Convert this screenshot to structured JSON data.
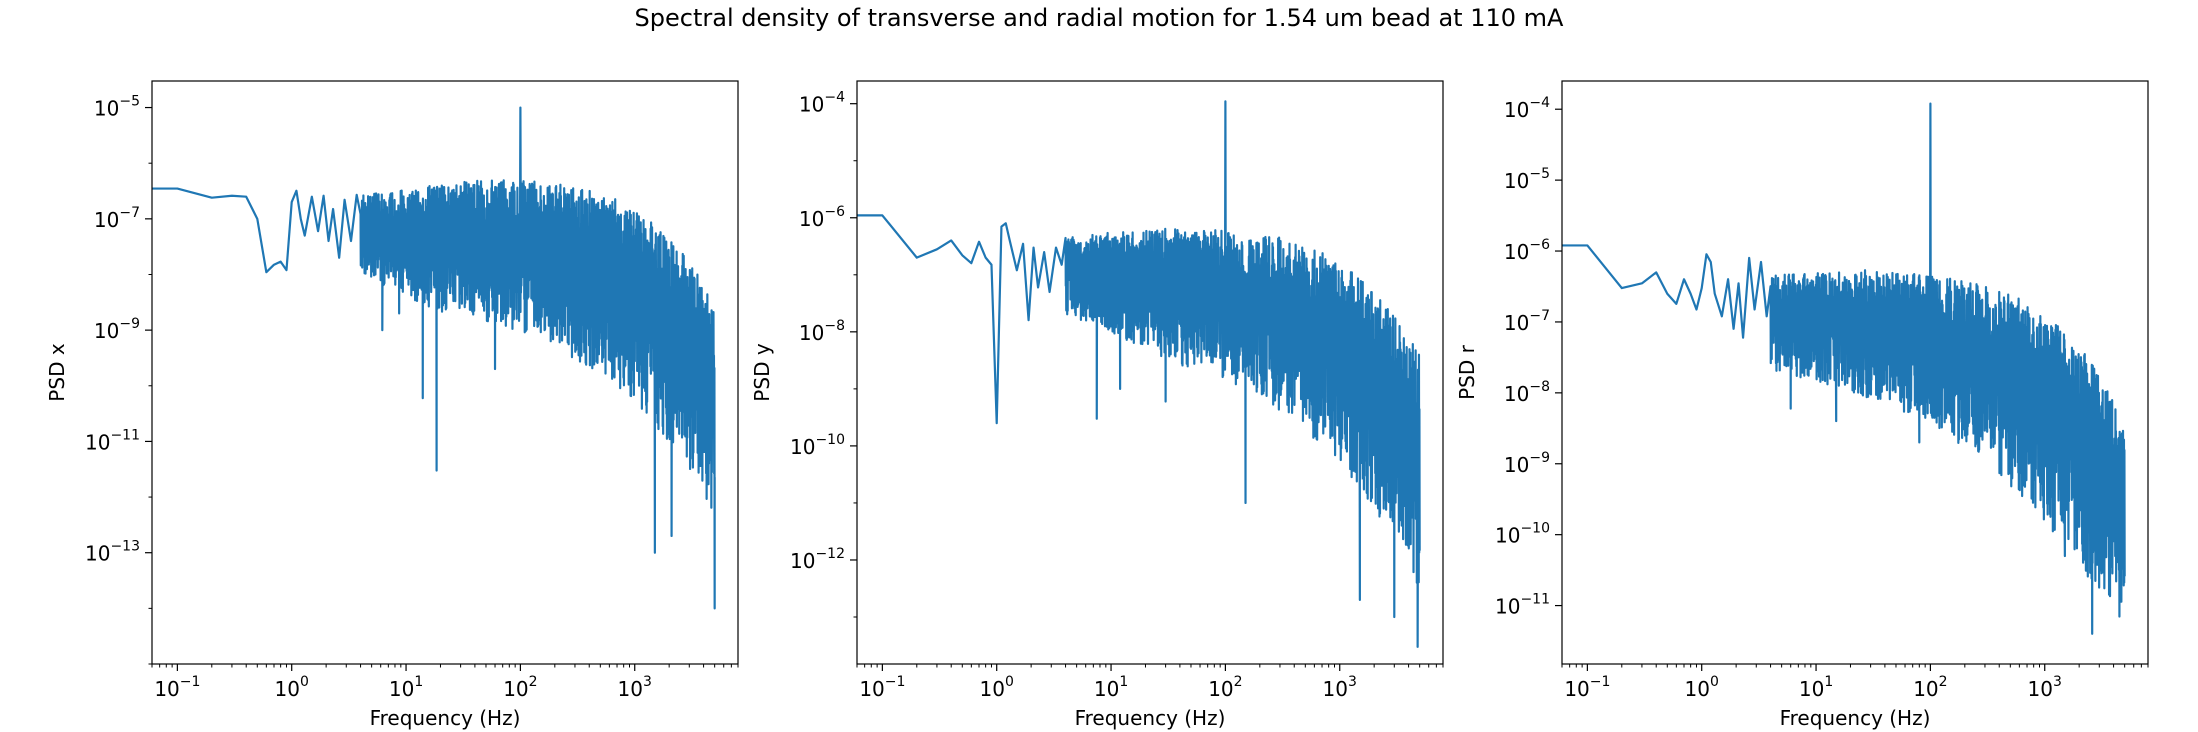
{
  "figure": {
    "title": "Spectral density of transverse and radial motion for 1.54 um bead at 110 mA"
  },
  "chart_data": [
    {
      "type": "line",
      "ylabel": "PSD x",
      "xlabel": "Frequency (Hz)",
      "xscale": "log",
      "yscale": "log",
      "xlim": [
        0.06,
        8000
      ],
      "ylim": [
        1e-15,
        3e-05
      ],
      "grid": false,
      "color": "#1f77b4",
      "xticks": [
        {
          "base": "10",
          "exp": "−1",
          "value": 0.1
        },
        {
          "base": "10",
          "exp": "0",
          "value": 1
        },
        {
          "base": "10",
          "exp": "1",
          "value": 10
        },
        {
          "base": "10",
          "exp": "2",
          "value": 100
        },
        {
          "base": "10",
          "exp": "3",
          "value": 1000
        }
      ],
      "yticks": [
        {
          "base": "10",
          "exp": "−5",
          "value": 1e-05
        },
        {
          "base": "10",
          "exp": "−7",
          "value": 1e-07
        },
        {
          "base": "10",
          "exp": "−9",
          "value": 1e-09
        },
        {
          "base": "10",
          "exp": "−11",
          "value": 1e-11
        },
        {
          "base": "10",
          "exp": "−13",
          "value": 1e-13
        }
      ],
      "low_freq": {
        "x": [
          0.0005,
          0.1,
          0.2,
          0.3,
          0.4,
          0.5,
          0.6,
          0.7,
          0.8,
          0.9,
          1.0,
          1.1,
          1.2,
          1.3,
          1.5,
          1.7,
          1.9,
          2.1,
          2.3,
          2.6,
          2.9,
          3.3,
          3.7
        ],
        "y": [
          3.5e-07,
          3.5e-07,
          2.4e-07,
          2.6e-07,
          2.5e-07,
          1e-07,
          1.1e-08,
          1.5e-08,
          1.7e-08,
          1.2e-08,
          2e-07,
          3.2e-07,
          1e-07,
          5e-08,
          2.5e-07,
          6e-08,
          2.6e-07,
          4e-08,
          1.5e-07,
          2e-08,
          2.2e-07,
          4e-08,
          2.7e-07
        ]
      },
      "broadband": {
        "x_start": 4,
        "x_end": 5000,
        "peak_upper": [
          [
            4,
            2.8e-07
          ],
          [
            10,
            3.3e-07
          ],
          [
            30,
            4.8e-07
          ],
          [
            100,
            5e-07
          ],
          [
            300,
            4e-07
          ],
          [
            700,
            2.2e-07
          ],
          [
            1500,
            8e-08
          ],
          [
            3000,
            1.8e-08
          ],
          [
            5000,
            3e-09
          ]
        ],
        "valley_lower": [
          [
            4,
            1e-08
          ],
          [
            10,
            4e-09
          ],
          [
            30,
            1.5e-09
          ],
          [
            100,
            1e-09
          ],
          [
            300,
            3e-10
          ],
          [
            700,
            1e-10
          ],
          [
            1500,
            2e-11
          ],
          [
            3000,
            3e-12
          ],
          [
            5000,
            5e-13
          ]
        ],
        "dips": [
          [
            6.2,
            1e-09
          ],
          [
            8.7,
            2e-09
          ],
          [
            14,
            6e-11
          ],
          [
            18.5,
            3e-12
          ],
          [
            60,
            2e-10
          ],
          [
            1500,
            1e-13
          ],
          [
            2100,
            2e-13
          ],
          [
            5000,
            1e-14
          ]
        ]
      },
      "spike": {
        "x": 100,
        "y": 1e-05
      }
    },
    {
      "type": "line",
      "ylabel": "PSD y",
      "xlabel": "Frequency (Hz)",
      "xscale": "log",
      "yscale": "log",
      "xlim": [
        0.06,
        8000
      ],
      "ylim": [
        1.5e-14,
        0.00025
      ],
      "grid": false,
      "color": "#1f77b4",
      "xticks": [
        {
          "base": "10",
          "exp": "−1",
          "value": 0.1
        },
        {
          "base": "10",
          "exp": "0",
          "value": 1
        },
        {
          "base": "10",
          "exp": "1",
          "value": 10
        },
        {
          "base": "10",
          "exp": "2",
          "value": 100
        },
        {
          "base": "10",
          "exp": "3",
          "value": 1000
        }
      ],
      "yticks": [
        {
          "base": "10",
          "exp": "−4",
          "value": 0.0001
        },
        {
          "base": "10",
          "exp": "−6",
          "value": 1e-06
        },
        {
          "base": "10",
          "exp": "−8",
          "value": 1e-08
        },
        {
          "base": "10",
          "exp": "−10",
          "value": 1e-10
        },
        {
          "base": "10",
          "exp": "−12",
          "value": 1e-12
        }
      ],
      "low_freq": {
        "x": [
          0.0005,
          0.1,
          0.2,
          0.3,
          0.4,
          0.5,
          0.6,
          0.7,
          0.8,
          0.9,
          1.0,
          1.1,
          1.2,
          1.3,
          1.5,
          1.7,
          1.9,
          2.1,
          2.3,
          2.6,
          2.9,
          3.3,
          3.7
        ],
        "y": [
          1.1e-06,
          1.1e-06,
          2e-07,
          2.8e-07,
          4e-07,
          2.2e-07,
          1.6e-07,
          3.8e-07,
          2e-07,
          1.5e-07,
          2.5e-10,
          7e-07,
          8e-07,
          4e-07,
          1.2e-07,
          3.5e-07,
          1.6e-08,
          3e-07,
          6e-08,
          2.5e-07,
          5e-08,
          3e-07,
          1.5e-07
        ]
      },
      "broadband": {
        "x_start": 4,
        "x_end": 5000,
        "peak_upper": [
          [
            4,
            4.5e-07
          ],
          [
            10,
            5.5e-07
          ],
          [
            30,
            6.5e-07
          ],
          [
            100,
            6e-07
          ],
          [
            300,
            4.5e-07
          ],
          [
            700,
            2.5e-07
          ],
          [
            1500,
            9e-08
          ],
          [
            3000,
            2e-08
          ],
          [
            5000,
            4e-09
          ]
        ],
        "valley_lower": [
          [
            4,
            2e-08
          ],
          [
            10,
            1e-08
          ],
          [
            30,
            3e-09
          ],
          [
            100,
            1.5e-09
          ],
          [
            300,
            4e-10
          ],
          [
            700,
            1e-10
          ],
          [
            1500,
            2e-11
          ],
          [
            3000,
            2e-12
          ],
          [
            5000,
            3e-13
          ]
        ],
        "dips": [
          [
            7.5,
            3e-10
          ],
          [
            12,
            1e-09
          ],
          [
            30,
            6e-10
          ],
          [
            150,
            1e-11
          ],
          [
            1500,
            2e-13
          ],
          [
            3000,
            1e-13
          ],
          [
            4800,
            3e-14
          ]
        ]
      },
      "spike": {
        "x": 100,
        "y": 0.00011
      }
    },
    {
      "type": "line",
      "ylabel": "PSD r",
      "xlabel": "Frequency (Hz)",
      "xscale": "log",
      "yscale": "log",
      "xlim": [
        0.06,
        8000
      ],
      "ylim": [
        1.5e-12,
        0.00025
      ],
      "grid": false,
      "color": "#1f77b4",
      "xticks": [
        {
          "base": "10",
          "exp": "−1",
          "value": 0.1
        },
        {
          "base": "10",
          "exp": "0",
          "value": 1
        },
        {
          "base": "10",
          "exp": "1",
          "value": 10
        },
        {
          "base": "10",
          "exp": "2",
          "value": 100
        },
        {
          "base": "10",
          "exp": "3",
          "value": 1000
        }
      ],
      "yticks": [
        {
          "base": "10",
          "exp": "−4",
          "value": 0.0001
        },
        {
          "base": "10",
          "exp": "−5",
          "value": 1e-05
        },
        {
          "base": "10",
          "exp": "−6",
          "value": 1e-06
        },
        {
          "base": "10",
          "exp": "−7",
          "value": 1e-07
        },
        {
          "base": "10",
          "exp": "−8",
          "value": 1e-08
        },
        {
          "base": "10",
          "exp": "−9",
          "value": 1e-09
        },
        {
          "base": "10",
          "exp": "−10",
          "value": 1e-10
        },
        {
          "base": "10",
          "exp": "−11",
          "value": 1e-11
        }
      ],
      "low_freq": {
        "x": [
          0.0005,
          0.1,
          0.2,
          0.3,
          0.4,
          0.5,
          0.6,
          0.7,
          0.8,
          0.9,
          1.0,
          1.1,
          1.2,
          1.3,
          1.5,
          1.7,
          1.9,
          2.1,
          2.3,
          2.6,
          2.9,
          3.3,
          3.7
        ],
        "y": [
          1.2e-06,
          1.2e-06,
          3e-07,
          3.5e-07,
          5e-07,
          2.5e-07,
          1.8e-07,
          4e-07,
          2.5e-07,
          1.5e-07,
          3e-07,
          9e-07,
          7e-07,
          2.5e-07,
          1.2e-07,
          4e-07,
          8e-08,
          3.5e-07,
          6e-08,
          8e-07,
          1.5e-07,
          7e-07,
          1.2e-07
        ]
      },
      "broadband": {
        "x_start": 4,
        "x_end": 5000,
        "peak_upper": [
          [
            4,
            4.5e-07
          ],
          [
            10,
            5e-07
          ],
          [
            30,
            5.5e-07
          ],
          [
            100,
            4.5e-07
          ],
          [
            300,
            3.5e-07
          ],
          [
            700,
            2e-07
          ],
          [
            1500,
            8e-08
          ],
          [
            3000,
            2e-08
          ],
          [
            5000,
            4e-09
          ]
        ],
        "valley_lower": [
          [
            4,
            2e-08
          ],
          [
            10,
            1.5e-08
          ],
          [
            30,
            8e-09
          ],
          [
            100,
            4e-09
          ],
          [
            300,
            1e-09
          ],
          [
            700,
            3e-10
          ],
          [
            1500,
            7e-11
          ],
          [
            3000,
            1.5e-11
          ],
          [
            5000,
            1e-11
          ]
        ],
        "dips": [
          [
            6,
            6e-09
          ],
          [
            15,
            4e-09
          ],
          [
            80,
            2e-09
          ],
          [
            1500,
            5e-11
          ],
          [
            2600,
            4e-12
          ],
          [
            4500,
            7e-12
          ]
        ]
      },
      "spike": {
        "x": 100,
        "y": 0.00012
      }
    }
  ]
}
